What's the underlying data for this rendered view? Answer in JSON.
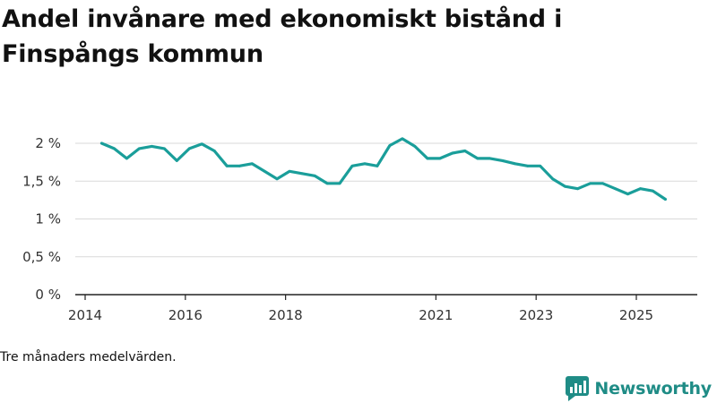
{
  "title": "Andel invånare med ekonomiskt bistånd i Finspångs kommun",
  "note": "Tre månaders medelvärden.",
  "brand": {
    "name": "Newsworthy",
    "color": "#1f8c86"
  },
  "colors": {
    "line": "#1a9e9a",
    "grid": "#d9d9d9",
    "axis": "#222222"
  },
  "chart_data": {
    "type": "line",
    "title": "Andel invånare med ekonomiskt bistånd i Finspångs kommun",
    "xlabel": "",
    "ylabel": "",
    "ylim": [
      0,
      2.2
    ],
    "xlim": [
      2014.0,
      2026.2
    ],
    "yticks": [
      {
        "value": 0,
        "label": "0 %"
      },
      {
        "value": 0.5,
        "label": "0,5 %"
      },
      {
        "value": 1,
        "label": "1 %"
      },
      {
        "value": 1.5,
        "label": "1,5 %"
      },
      {
        "value": 2,
        "label": "2 %"
      }
    ],
    "xticks": [
      {
        "value": 2014.0,
        "label": "2014"
      },
      {
        "value": 2016.0,
        "label": "2016"
      },
      {
        "value": 2018.0,
        "label": "2018"
      },
      {
        "value": 2021.0,
        "label": "2021"
      },
      {
        "value": 2023.0,
        "label": "2023"
      },
      {
        "value": 2025.0,
        "label": "2025"
      }
    ],
    "grid": true,
    "series": [
      {
        "name": "Andel invånare med ekonomiskt bistånd",
        "x": [
          2014.33,
          2014.58,
          2014.83,
          2015.08,
          2015.33,
          2015.58,
          2015.83,
          2016.08,
          2016.33,
          2016.58,
          2016.83,
          2017.08,
          2017.33,
          2017.58,
          2017.83,
          2018.08,
          2018.33,
          2018.58,
          2018.83,
          2019.08,
          2019.33,
          2019.58,
          2019.83,
          2020.08,
          2020.33,
          2020.58,
          2020.83,
          2021.08,
          2021.33,
          2021.58,
          2021.83,
          2022.08,
          2022.33,
          2022.58,
          2022.83,
          2023.08,
          2023.33,
          2023.58,
          2023.83,
          2024.08,
          2024.33,
          2024.58,
          2024.83,
          2025.08,
          2025.33,
          2025.58
        ],
        "values": [
          2.0,
          1.93,
          1.8,
          1.93,
          1.96,
          1.93,
          1.77,
          1.93,
          1.99,
          1.9,
          1.7,
          1.7,
          1.73,
          1.63,
          1.53,
          1.63,
          1.6,
          1.57,
          1.47,
          1.47,
          1.7,
          1.73,
          1.7,
          1.97,
          2.06,
          1.96,
          1.8,
          1.8,
          1.87,
          1.9,
          1.8,
          1.8,
          1.77,
          1.73,
          1.7,
          1.7,
          1.53,
          1.43,
          1.4,
          1.47,
          1.47,
          1.4,
          1.33,
          1.4,
          1.37,
          1.26
        ]
      }
    ]
  }
}
